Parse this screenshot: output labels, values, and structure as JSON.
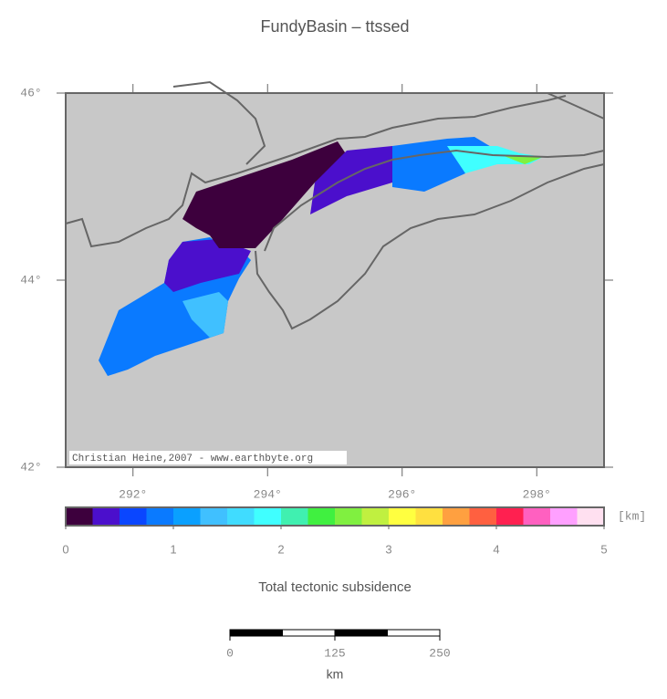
{
  "title": "FundyBasin – ttssed",
  "map": {
    "xlim": [
      291,
      299
    ],
    "ylim": [
      42,
      46
    ],
    "xticks": [
      {
        "value": 292,
        "label": "292°"
      },
      {
        "value": 294,
        "label": "294°"
      },
      {
        "value": 296,
        "label": "296°"
      },
      {
        "value": 298,
        "label": "298°"
      }
    ],
    "yticks": [
      {
        "value": 42,
        "label": "42°"
      },
      {
        "value": 44,
        "label": "44°"
      },
      {
        "value": 46,
        "label": "46°"
      }
    ],
    "credit": "Christian Heine,2007 - www.earthbyte.org"
  },
  "colorbar": {
    "range": [
      0,
      5
    ],
    "colors": [
      "#3d003d",
      "#4b0fcc",
      "#0a46ff",
      "#0a7aff",
      "#0aa0ff",
      "#40c0ff",
      "#40dcff",
      "#40ffff",
      "#40f0b0",
      "#40f040",
      "#80f040",
      "#c0f040",
      "#ffff40",
      "#ffe040",
      "#ffa040",
      "#ff6040",
      "#ff2050",
      "#ff60c0",
      "#ffa0ff",
      "#ffe0f0"
    ],
    "ticks": [
      0,
      1,
      2,
      3,
      4,
      5
    ],
    "unit": "[km]",
    "label": "Total tectonic subsidence"
  },
  "scalebar": {
    "range": [
      0,
      250
    ],
    "ticks": [
      0,
      125,
      250
    ],
    "unit": "km"
  }
}
